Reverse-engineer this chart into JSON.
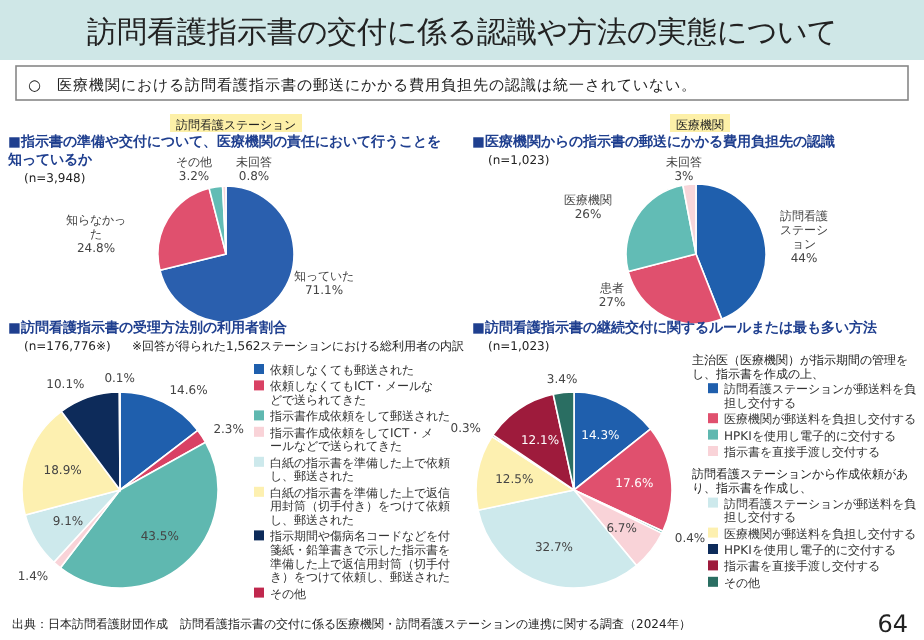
{
  "chart_data": [
    {
      "type": "other",
      "title": "訪問看護指示書の交付に係る認識や方法の実態について",
      "annotations": [
        "○　医療機関における訪問看護指示書の郵送にかかる費用負担先の認識は統一されていない。",
        "出典：日本訪問看護財団作成　訪問看護指示書の交付に係る医療機関・訪問看護ステーションの連携に関する調査（2024年）",
        "64"
      ]
    },
    {
      "type": "pie",
      "subtitle": "訪問看護ステーション",
      "title": "■指示書の準備や交付について、医療機関の責任において行うことを知っているか",
      "annotations": [
        "(n=3,948)"
      ],
      "categories": [
        "知っていた",
        "知らなかった",
        "その他",
        "未回答"
      ],
      "values": [
        71.1,
        24.8,
        3.2,
        0.8
      ],
      "colors": [
        "#2a5fae",
        "#e0506e",
        "#62bcb5",
        "#f7d6da"
      ],
      "value_labels": [
        "71.1%",
        "24.8%",
        "3.2%",
        "0.8%"
      ]
    },
    {
      "type": "pie",
      "subtitle": "医療機関",
      "title": "■医療機関からの指示書の郵送にかかる費用負担先の認識",
      "annotations": [
        "(n=1,023)"
      ],
      "categories": [
        "訪問看護ステーション",
        "患者",
        "医療機関",
        "未回答"
      ],
      "values": [
        44,
        27,
        26,
        3
      ],
      "colors": [
        "#1f5fad",
        "#e0506e",
        "#62bcb5",
        "#f7d6da"
      ],
      "value_labels": [
        "44%",
        "27%",
        "26%",
        "3%"
      ]
    },
    {
      "type": "pie",
      "title": "■訪問看護指示書の受理方法別の利用者割合",
      "annotations": [
        "(n=176,776※)",
        "※回答が得られた1,562ステーションにおける総利用者の内訳"
      ],
      "legend": "right",
      "categories": [
        "依頼しなくても郵送された",
        "依頼しなくてもICT・メールなどで送られてきた",
        "指示書作成依頼をして郵送された",
        "指示書作成依頼をしてICT・メールなどで送られてきた",
        "白紙の指示書を準備した上で依頼し、郵送された",
        "白紙の指示書を準備した上で返信用封筒（切手付き）をつけて依頼し、郵送された",
        "指示期間や傷病名コードなどを付箋紙・鉛筆書きで示した指示書を準備した上で返信用封筒（切手付き）をつけて依頼し、郵送された",
        "その他"
      ],
      "values": [
        14.6,
        2.3,
        43.5,
        1.4,
        9.1,
        18.9,
        10.1,
        0.1
      ],
      "colors": [
        "#1f5fad",
        "#d94164",
        "#5fb8b0",
        "#f9d3d8",
        "#cde9ec",
        "#fdf0b0",
        "#0d2b5a",
        "#c0284e"
      ],
      "value_labels": [
        "14.6%",
        "2.3%",
        "43.5%",
        "1.4%",
        "9.1%",
        "18.9%",
        "10.1%",
        "0.1%"
      ]
    },
    {
      "type": "pie",
      "title": "■訪問看護指示書の継続交付に関するルールまたは最も多い方法",
      "annotations": [
        "(n=1,023)",
        "主治医（医療機関）が指示期間の管理をし、指示書を作成の上、",
        "訪問看護ステーションから作成依頼があり、指示書を作成し、"
      ],
      "legend": "right",
      "categories": [
        "訪問看護ステーションが郵送料を負担し交付する",
        "医療機関が郵送料を負担し交付する",
        "HPKIを使用し電子的に交付する",
        "指示書を直接手渡し交付する",
        "訪問看護ステーションが郵送料を負担し交付する",
        "医療機関が郵送料を負担し交付する",
        "HPKIを使用し電子的に交付する",
        "指示書を直接手渡し交付する",
        "その他"
      ],
      "values": [
        14.3,
        17.6,
        0.4,
        6.7,
        32.7,
        12.5,
        0.3,
        12.1,
        3.4
      ],
      "colors": [
        "#1f5fad",
        "#e0506e",
        "#5fb8b0",
        "#f9d3d8",
        "#cde9ec",
        "#fdf0b0",
        "#0d2b5a",
        "#9e1b3c",
        "#2a6e62"
      ],
      "value_labels": [
        "14.3%",
        "17.6%",
        "0.4%",
        "6.7%",
        "32.7%",
        "12.5%",
        "0.3%",
        "12.1%",
        "3.4%"
      ]
    }
  ]
}
